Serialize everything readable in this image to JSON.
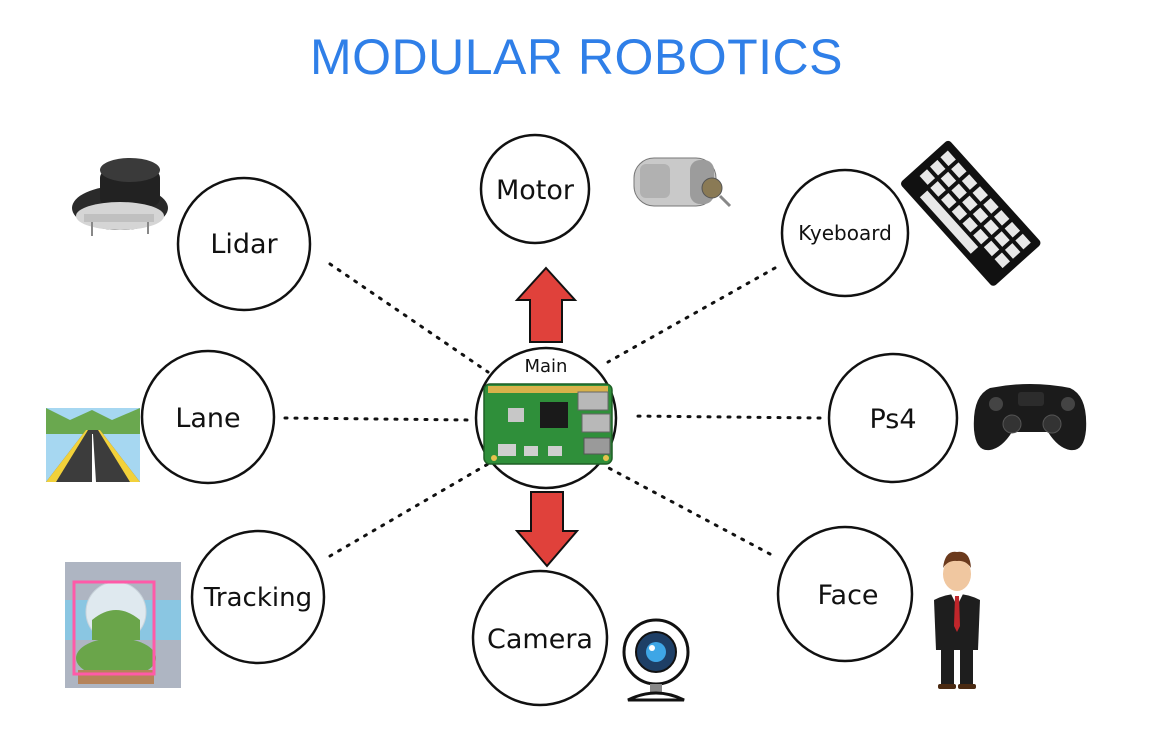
{
  "title": "MODULAR ROBOTICS",
  "colors": {
    "title": "#2f7fe8",
    "arrow": "#e0413b",
    "circle_stroke": "#111111",
    "dots": "#111111"
  },
  "center": {
    "label": "Main",
    "icon": "raspberry-pi-board-icon"
  },
  "nodes": {
    "motor": {
      "label": "Motor",
      "icon": "dc-motor-icon"
    },
    "keyboard": {
      "label": "Kyeboard",
      "icon": "keyboard-icon"
    },
    "ps4": {
      "label": "Ps4",
      "icon": "gamepad-icon"
    },
    "face": {
      "label": "Face",
      "icon": "businessman-icon"
    },
    "camera": {
      "label": "Camera",
      "icon": "webcam-icon"
    },
    "tracking": {
      "label": "Tracking",
      "icon": "tracking-snowglobe-icon"
    },
    "lane": {
      "label": "Lane",
      "icon": "road-lane-icon"
    },
    "lidar": {
      "label": "Lidar",
      "icon": "lidar-sensor-icon"
    }
  }
}
